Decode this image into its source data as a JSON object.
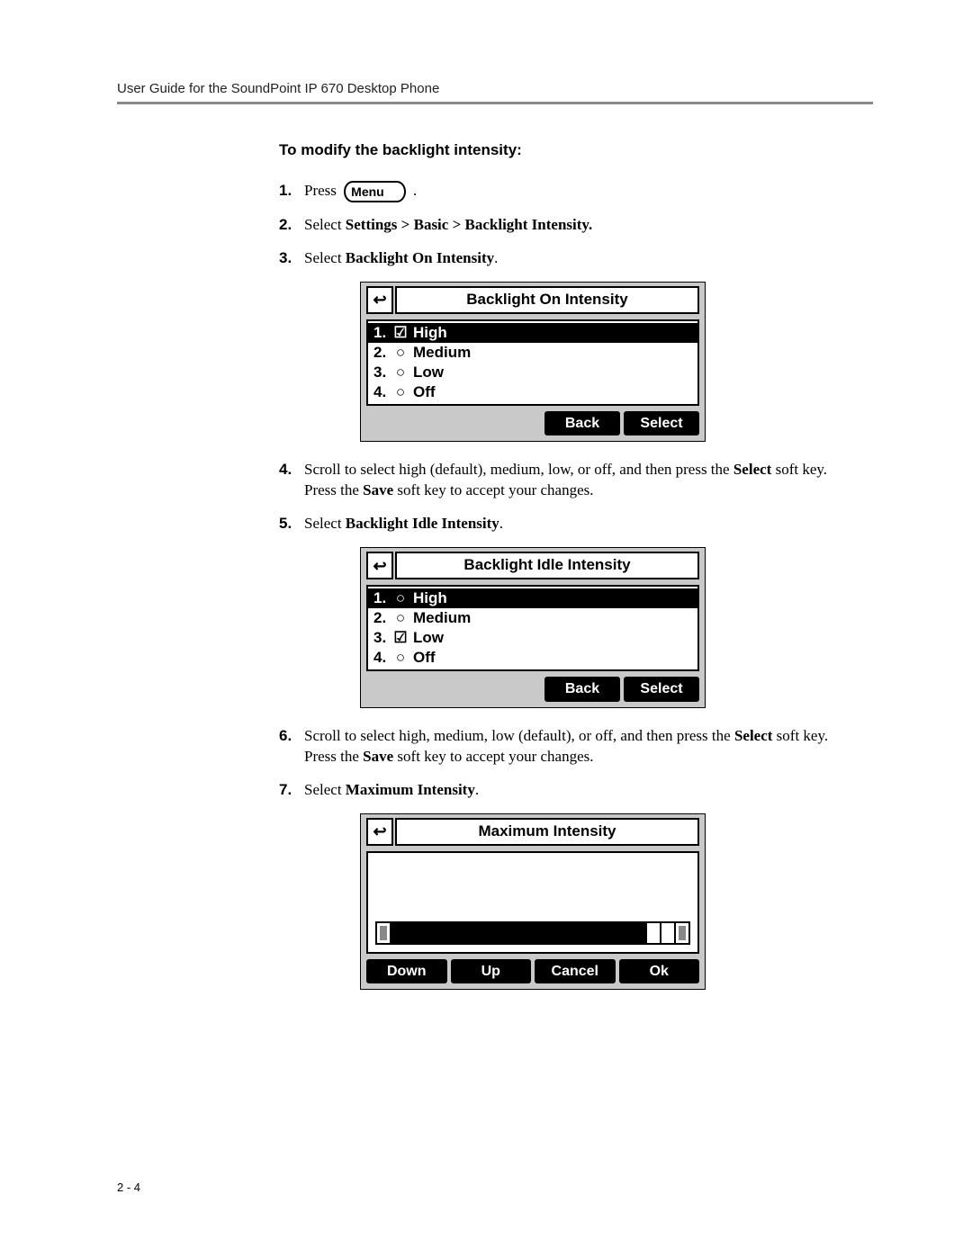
{
  "header": "User Guide for the SoundPoint IP 670 Desktop Phone",
  "page_number": "2 - 4",
  "section_title": "To modify the backlight intensity:",
  "menu_key_label": "Menu",
  "steps": {
    "s1_pre": "Press",
    "s1_post": ".",
    "s2_pre": "Select ",
    "s2_bold": "Settings > Basic > Backlight Intensity.",
    "s3_pre": "Select ",
    "s3_bold": "Backlight On Intensity",
    "s3_post": ".",
    "s4a": "Scroll to select high (default), medium, low, or off, and then press the ",
    "s4b": "Select",
    "s4c": " soft key. Press the ",
    "s4d": "Save",
    "s4e": " soft key to accept your changes.",
    "s5_pre": "Select ",
    "s5_bold": "Backlight Idle Intensity",
    "s5_post": ".",
    "s6a": "Scroll to select high, medium, low (default), or off, and then press the ",
    "s6b": "Select",
    "s6c": " soft key. Press the ",
    "s6d": "Save",
    "s6e": " soft key to accept your changes.",
    "s7_pre": "Select ",
    "s7_bold": "Maximum Intensity",
    "s7_post": "."
  },
  "screen1": {
    "title": "Backlight On Intensity",
    "items": [
      {
        "idx": "1.",
        "checked": true,
        "label": "High",
        "selected": true
      },
      {
        "idx": "2.",
        "checked": false,
        "label": "Medium",
        "selected": false
      },
      {
        "idx": "3.",
        "checked": false,
        "label": "Low",
        "selected": false
      },
      {
        "idx": "4.",
        "checked": false,
        "label": "Off",
        "selected": false
      }
    ],
    "softkeys": [
      "Back",
      "Select"
    ]
  },
  "screen2": {
    "title": "Backlight Idle Intensity",
    "items": [
      {
        "idx": "1.",
        "checked": false,
        "label": "High",
        "selected": true
      },
      {
        "idx": "2.",
        "checked": false,
        "label": "Medium",
        "selected": false
      },
      {
        "idx": "3.",
        "checked": true,
        "label": "Low",
        "selected": false
      },
      {
        "idx": "4.",
        "checked": false,
        "label": "Off",
        "selected": false
      }
    ],
    "softkeys": [
      "Back",
      "Select"
    ]
  },
  "screen3": {
    "title": "Maximum Intensity",
    "slider": {
      "total": 22,
      "value": 18
    },
    "softkeys": [
      "Down",
      "Up",
      "Cancel",
      "Ok"
    ]
  },
  "colors": {
    "lcd_bg": "#c9c9c9",
    "hr": "#8a8a8a"
  }
}
